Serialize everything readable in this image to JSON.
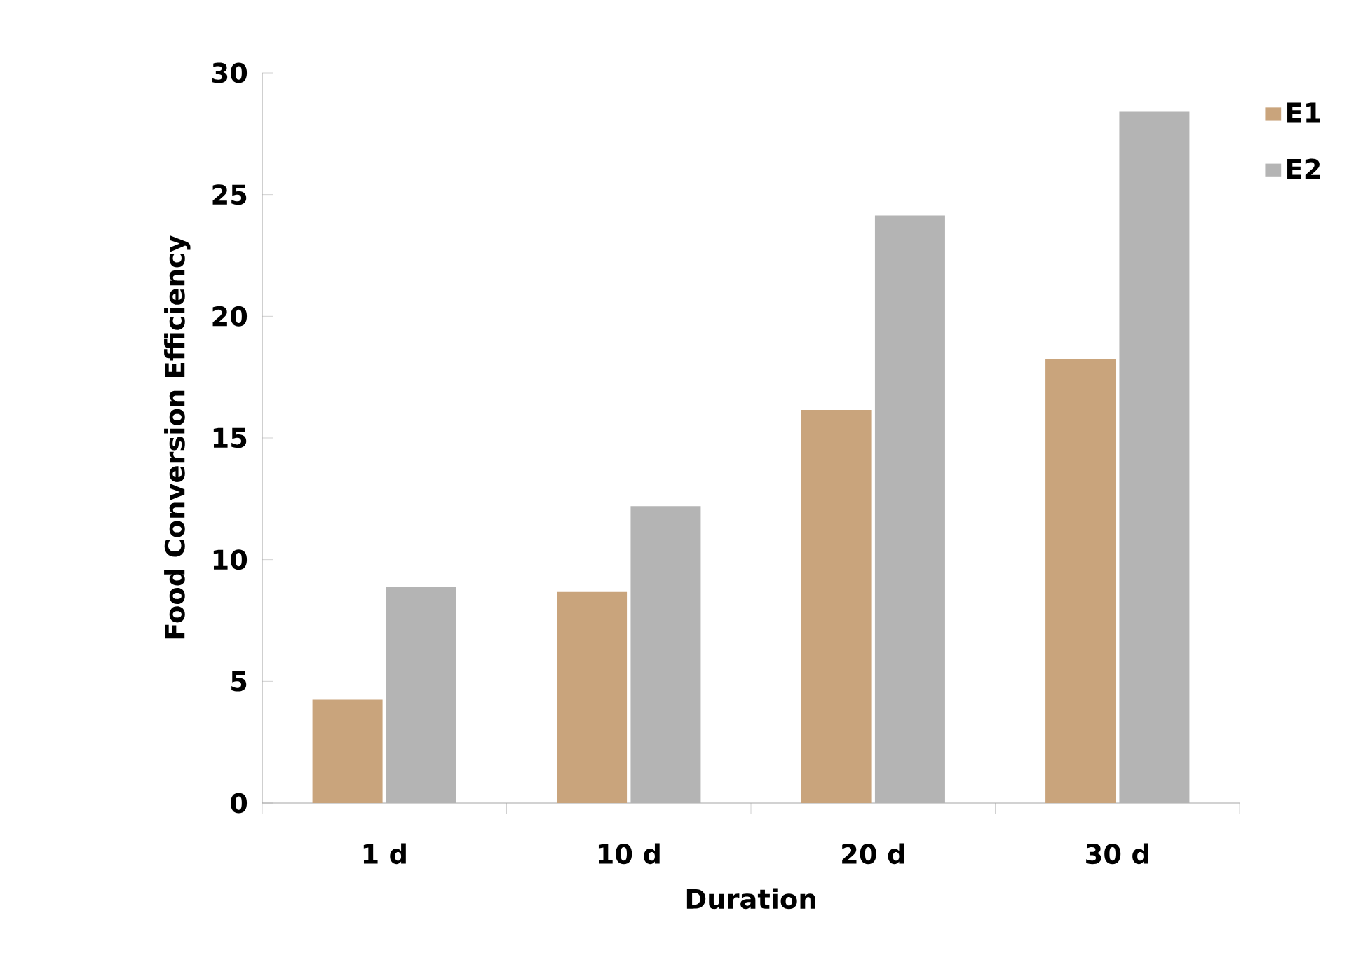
{
  "chart_data": {
    "type": "bar",
    "xlabel": "Duration",
    "ylabel": "Food Conversion Efficiency",
    "categories": [
      "1 d",
      "10 d",
      "20 d",
      "30 d"
    ],
    "series": [
      {
        "name": "E1",
        "color": "#c9a47c",
        "values": [
          4.25,
          8.67,
          16.15,
          18.25
        ]
      },
      {
        "name": "E2",
        "color": "#b4b4b4",
        "values": [
          8.88,
          12.2,
          24.14,
          28.4
        ]
      }
    ],
    "ylim": [
      0,
      30
    ],
    "yticks": [
      0,
      5,
      10,
      15,
      20,
      25,
      30
    ],
    "legend": "right",
    "grid": false
  }
}
